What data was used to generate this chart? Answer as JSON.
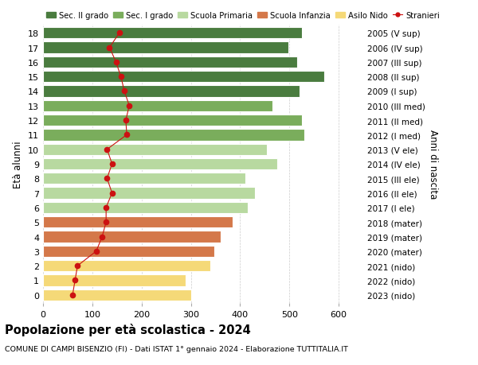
{
  "ages": [
    18,
    17,
    16,
    15,
    14,
    13,
    12,
    11,
    10,
    9,
    8,
    7,
    6,
    5,
    4,
    3,
    2,
    1,
    0
  ],
  "right_labels": [
    "2005 (V sup)",
    "2006 (IV sup)",
    "2007 (III sup)",
    "2008 (II sup)",
    "2009 (I sup)",
    "2010 (III med)",
    "2011 (II med)",
    "2012 (I med)",
    "2013 (V ele)",
    "2014 (IV ele)",
    "2015 (III ele)",
    "2016 (II ele)",
    "2017 (I ele)",
    "2018 (mater)",
    "2019 (mater)",
    "2020 (mater)",
    "2021 (nido)",
    "2022 (nido)",
    "2023 (nido)"
  ],
  "bar_values": [
    525,
    498,
    515,
    570,
    520,
    465,
    525,
    530,
    455,
    475,
    410,
    430,
    415,
    385,
    360,
    348,
    340,
    290,
    300
  ],
  "bar_colors": [
    "#4a7c3f",
    "#4a7c3f",
    "#4a7c3f",
    "#4a7c3f",
    "#4a7c3f",
    "#7aad5c",
    "#7aad5c",
    "#7aad5c",
    "#b8d9a0",
    "#b8d9a0",
    "#b8d9a0",
    "#b8d9a0",
    "#b8d9a0",
    "#d4784a",
    "#d4784a",
    "#d4784a",
    "#f5d978",
    "#f5d978",
    "#f5d978"
  ],
  "stranieri_values": [
    155,
    135,
    148,
    158,
    165,
    175,
    168,
    170,
    130,
    140,
    130,
    140,
    128,
    128,
    120,
    108,
    70,
    65,
    60
  ],
  "xlim": [
    0,
    650
  ],
  "xlabel_ticks": [
    0,
    100,
    200,
    300,
    400,
    500,
    600
  ],
  "ylabel_left": "Età alunni",
  "ylabel_right": "Anni di nascita",
  "legend_entries": [
    {
      "label": "Sec. II grado",
      "color": "#4a7c3f"
    },
    {
      "label": "Sec. I grado",
      "color": "#7aad5c"
    },
    {
      "label": "Scuola Primaria",
      "color": "#b8d9a0"
    },
    {
      "label": "Scuola Infanzia",
      "color": "#d4784a"
    },
    {
      "label": "Asilo Nido",
      "color": "#f5d978"
    },
    {
      "label": "Stranieri",
      "color": "#cc1111"
    }
  ],
  "title": "Popolazione per età scolastica - 2024",
  "subtitle": "COMUNE DI CAMPI BISENZIO (FI) - Dati ISTAT 1° gennaio 2024 - Elaborazione TUTTITALIA.IT",
  "bg_color": "#ffffff",
  "bar_height": 0.78,
  "grid_color": "#cccccc"
}
